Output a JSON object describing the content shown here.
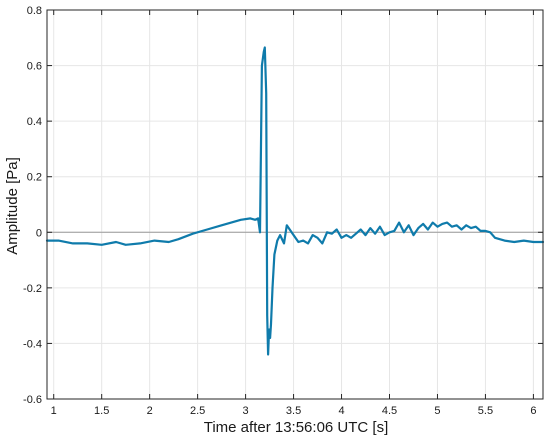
{
  "chart_data": {
    "type": "line",
    "title": "",
    "xlabel": "Time after 13:56:06 UTC [s]",
    "ylabel": "Amplitude [Pa]",
    "xlim": [
      0.93,
      6.1
    ],
    "ylim": [
      -0.6,
      0.8
    ],
    "xticks": [
      1,
      1.5,
      2,
      2.5,
      3,
      3.5,
      4,
      4.5,
      5,
      5.5,
      6
    ],
    "xtick_labels": [
      "1",
      "1.5",
      "2",
      "2.5",
      "3",
      "3.5",
      "4",
      "4.5",
      "5",
      "5.5",
      "6"
    ],
    "yticks": [
      -0.6,
      -0.4,
      -0.2,
      0,
      0.2,
      0.4,
      0.6,
      0.8
    ],
    "ytick_labels": [
      "-0.6",
      "-0.4",
      "-0.2",
      "0",
      "0.2",
      "0.4",
      "0.6",
      "0.8"
    ],
    "grid": true,
    "zero_line": 0,
    "series": [
      {
        "name": "",
        "color": "#0f7bab",
        "x": [
          0.93,
          1.05,
          1.2,
          1.35,
          1.5,
          1.65,
          1.75,
          1.9,
          2.05,
          2.2,
          2.3,
          2.45,
          2.6,
          2.75,
          2.85,
          2.95,
          3.05,
          3.1,
          3.13,
          3.15,
          3.17,
          3.19,
          3.2,
          3.215,
          3.225,
          3.235,
          3.245,
          3.255,
          3.265,
          3.28,
          3.3,
          3.33,
          3.36,
          3.4,
          3.43,
          3.46,
          3.5,
          3.55,
          3.6,
          3.65,
          3.7,
          3.75,
          3.8,
          3.85,
          3.9,
          3.95,
          4.0,
          4.05,
          4.1,
          4.15,
          4.2,
          4.25,
          4.3,
          4.35,
          4.4,
          4.45,
          4.5,
          4.55,
          4.6,
          4.65,
          4.7,
          4.75,
          4.8,
          4.85,
          4.9,
          4.95,
          5.0,
          5.05,
          5.1,
          5.15,
          5.2,
          5.25,
          5.3,
          5.35,
          5.4,
          5.45,
          5.5,
          5.55,
          5.6,
          5.7,
          5.8,
          5.9,
          6.0,
          6.1
        ],
        "y": [
          -0.03,
          -0.03,
          -0.04,
          -0.04,
          -0.045,
          -0.035,
          -0.045,
          -0.04,
          -0.03,
          -0.035,
          -0.025,
          -0.005,
          0.01,
          0.025,
          0.035,
          0.045,
          0.05,
          0.045,
          0.05,
          0.0,
          0.6,
          0.65,
          0.665,
          0.5,
          -0.3,
          -0.44,
          -0.35,
          -0.38,
          -0.33,
          -0.2,
          -0.08,
          -0.03,
          -0.01,
          -0.04,
          0.025,
          0.01,
          -0.01,
          -0.035,
          -0.03,
          -0.04,
          -0.01,
          -0.02,
          -0.04,
          0.0,
          -0.005,
          0.01,
          -0.02,
          -0.01,
          -0.02,
          -0.005,
          0.01,
          -0.01,
          0.015,
          -0.005,
          0.02,
          -0.01,
          0.0,
          0.005,
          0.035,
          0.0,
          0.025,
          -0.01,
          0.015,
          0.03,
          0.01,
          0.035,
          0.02,
          0.03,
          0.035,
          0.02,
          0.025,
          0.01,
          0.025,
          0.015,
          0.02,
          0.005,
          0.005,
          0.0,
          -0.02,
          -0.03,
          -0.035,
          -0.03,
          -0.035,
          -0.035
        ]
      }
    ]
  }
}
